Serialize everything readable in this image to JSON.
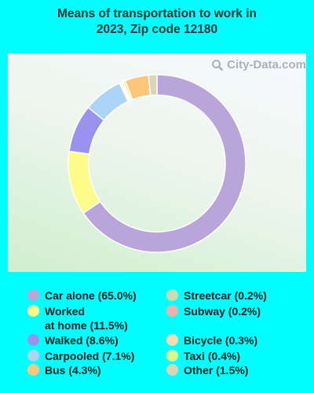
{
  "title_line1": "Means of transportation to work in",
  "title_line2": "2023, Zip code 12180",
  "watermark": "City-Data.com",
  "watermark_icon": "magnifier-icon",
  "chart_data": {
    "type": "pie",
    "style": "donut",
    "title": "Means of transportation to work in 2023, Zip code 12180",
    "slices": [
      {
        "label": "Car alone",
        "value": 65.0,
        "color": "#b9a5d9"
      },
      {
        "label": "Worked at home",
        "value": 11.5,
        "color": "#fdfb8a"
      },
      {
        "label": "Walked",
        "value": 8.6,
        "color": "#9a92ef"
      },
      {
        "label": "Carpooled",
        "value": 7.1,
        "color": "#abd4f7"
      },
      {
        "label": "Streetcar",
        "value": 0.2,
        "color": "#c8dcae"
      },
      {
        "label": "Subway",
        "value": 0.2,
        "color": "#f2b0ab"
      },
      {
        "label": "Bicycle",
        "value": 0.3,
        "color": "#f9dcb2"
      },
      {
        "label": "Taxi",
        "value": 0.4,
        "color": "#dbf88c"
      },
      {
        "label": "Bus",
        "value": 4.3,
        "color": "#fcc77a"
      },
      {
        "label": "Other",
        "value": 1.5,
        "color": "#dcd4b7"
      }
    ],
    "legend": [
      {
        "text": "Car alone (65.0%)",
        "color": "#b9a5d9"
      },
      {
        "text": "Worked",
        "text2": "at home (11.5%)",
        "color": "#fdfb8a"
      },
      {
        "text": "Walked (8.6%)",
        "color": "#9a92ef"
      },
      {
        "text": "Carpooled (7.1%)",
        "color": "#abd4f7"
      },
      {
        "text": "Bus (4.3%)",
        "color": "#fcc77a"
      },
      {
        "text": "Streetcar (0.2%)",
        "color": "#c8dcae"
      },
      {
        "text": "Subway (0.2%)",
        "color": "#f2b0ab"
      },
      {
        "text": "Bicycle (0.3%)",
        "color": "#f9dcb2"
      },
      {
        "text": "Taxi (0.4%)",
        "color": "#dbf88c"
      },
      {
        "text": "Other (1.5%)",
        "color": "#dcd4b7"
      }
    ],
    "legend_placement": "bottom"
  }
}
